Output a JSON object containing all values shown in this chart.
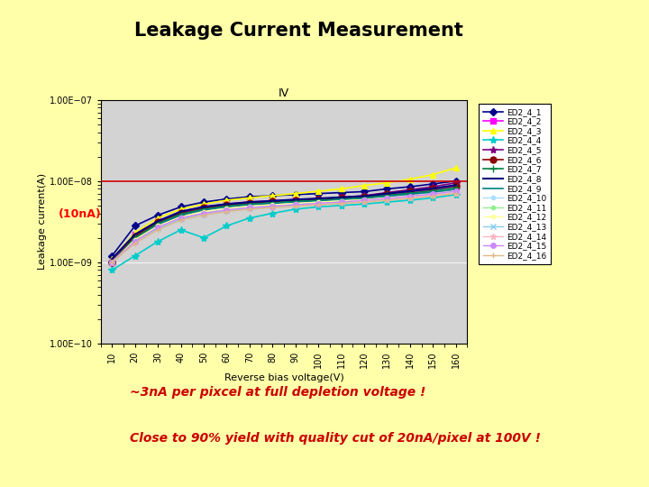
{
  "title": "Leakage Current Measurement",
  "subtitle": "IV",
  "xlabel": "Reverse bias voltage(V)",
  "ylabel": "Leakage current(A)",
  "annotation_10nA": "(10nA)",
  "annotation_3nA": "~3nA per pixcel at full depletion voltage !",
  "annotation_90": "Close to 90% yield with quality cut of 20nA/pixel at 100V !",
  "background_color": "#ffffaa",
  "plot_bg_color": "#d3d3d3",
  "hline_y": 1e-08,
  "hline_color": "#cc0000",
  "x_values": [
    10,
    20,
    30,
    40,
    50,
    60,
    70,
    80,
    90,
    100,
    110,
    120,
    130,
    140,
    150,
    160
  ],
  "series": [
    {
      "name": "ED2_4_1",
      "color": "#00008B",
      "marker": "D",
      "marker_size": 4,
      "linewidth": 1.2,
      "y": [
        1.2e-09,
        2.8e-09,
        3.8e-09,
        4.8e-09,
        5.5e-09,
        6e-09,
        6.4e-09,
        6.6e-09,
        6.8e-09,
        7e-09,
        7.2e-09,
        7.4e-09,
        8e-09,
        8.5e-09,
        9.2e-09,
        1e-08
      ]
    },
    {
      "name": "ED2_4_2",
      "color": "#ff00ff",
      "marker": "s",
      "marker_size": 4,
      "linewidth": 1.2,
      "y": [
        1e-09,
        2.2e-09,
        3.2e-09,
        4.2e-09,
        4.8e-09,
        5.2e-09,
        5.5e-09,
        5.7e-09,
        5.9e-09,
        6e-09,
        6.2e-09,
        6.4e-09,
        6.8e-09,
        7.2e-09,
        7.8e-09,
        8.5e-09
      ]
    },
    {
      "name": "ED2_4_3",
      "color": "#ffff00",
      "marker": "^",
      "marker_size": 5,
      "linewidth": 1.2,
      "y": [
        1.1e-09,
        2.3e-09,
        3.5e-09,
        4.5e-09,
        5.2e-09,
        5.8e-09,
        6.2e-09,
        6.6e-09,
        7e-09,
        7.5e-09,
        8e-09,
        8.8e-09,
        9.5e-09,
        1.05e-08,
        1.2e-08,
        1.45e-08
      ]
    },
    {
      "name": "ED2_4_4",
      "color": "#00cccc",
      "marker": "*",
      "marker_size": 6,
      "linewidth": 1.2,
      "y": [
        8e-10,
        1.2e-09,
        1.8e-09,
        2.5e-09,
        2e-09,
        2.8e-09,
        3.5e-09,
        4e-09,
        4.5e-09,
        4.8e-09,
        5e-09,
        5.2e-09,
        5.5e-09,
        5.8e-09,
        6.2e-09,
        6.8e-09
      ]
    },
    {
      "name": "ED2_4_5",
      "color": "#800080",
      "marker": "*",
      "marker_size": 6,
      "linewidth": 1.2,
      "y": [
        1e-09,
        2e-09,
        3e-09,
        4e-09,
        4.6e-09,
        5e-09,
        5.3e-09,
        5.6e-09,
        5.8e-09,
        6e-09,
        6.3e-09,
        6.6e-09,
        7.2e-09,
        7.8e-09,
        8.5e-09,
        9.5e-09
      ]
    },
    {
      "name": "ED2_4_6",
      "color": "#8B0000",
      "marker": "o",
      "marker_size": 5,
      "linewidth": 1.2,
      "y": [
        1e-09,
        2.1e-09,
        3.1e-09,
        4.1e-09,
        4.7e-09,
        5.1e-09,
        5.4e-09,
        5.6e-09,
        5.8e-09,
        6e-09,
        6.2e-09,
        6.5e-09,
        7e-09,
        7.5e-09,
        8e-09,
        8.8e-09
      ]
    },
    {
      "name": "ED2_4_7",
      "color": "#008040",
      "marker": "+",
      "marker_size": 6,
      "linewidth": 1.2,
      "y": [
        1e-09,
        2e-09,
        3e-09,
        3.9e-09,
        4.5e-09,
        4.9e-09,
        5.2e-09,
        5.4e-09,
        5.6e-09,
        5.8e-09,
        6e-09,
        6.3e-09,
        6.7e-09,
        7.1e-09,
        7.6e-09,
        8.3e-09
      ]
    },
    {
      "name": "ED2_4_8",
      "color": "#000080",
      "marker": "None",
      "marker_size": 0,
      "linewidth": 1.5,
      "y": [
        1.1e-09,
        2.2e-09,
        3.2e-09,
        4.2e-09,
        4.8e-09,
        5.2e-09,
        5.5e-09,
        5.7e-09,
        5.9e-09,
        6.1e-09,
        6.3e-09,
        6.5e-09,
        7e-09,
        7.5e-09,
        8.1e-09,
        8.9e-09
      ]
    },
    {
      "name": "ED2_4_9",
      "color": "#008080",
      "marker": "None",
      "marker_size": 0,
      "linewidth": 1.2,
      "y": [
        1e-09,
        1.9e-09,
        2.9e-09,
        3.8e-09,
        4.4e-09,
        4.8e-09,
        5.1e-09,
        5.3e-09,
        5.5e-09,
        5.7e-09,
        5.9e-09,
        6.1e-09,
        6.5e-09,
        6.9e-09,
        7.3e-09,
        7.9e-09
      ]
    },
    {
      "name": "ED2_4_10",
      "color": "#aaddff",
      "marker": "o",
      "marker_size": 3,
      "linewidth": 1.0,
      "y": [
        1e-09,
        1.8e-09,
        2.7e-09,
        3.5e-09,
        4.1e-09,
        4.5e-09,
        4.8e-09,
        5e-09,
        5.2e-09,
        5.4e-09,
        5.6e-09,
        5.8e-09,
        6.2e-09,
        6.5e-09,
        6.9e-09,
        7.5e-09
      ]
    },
    {
      "name": "ED2_4_11",
      "color": "#90ee90",
      "marker": "o",
      "marker_size": 3,
      "linewidth": 1.0,
      "y": [
        1e-09,
        1.8e-09,
        2.6e-09,
        3.4e-09,
        4e-09,
        4.4e-09,
        4.7e-09,
        4.9e-09,
        5.1e-09,
        5.3e-09,
        5.5e-09,
        5.7e-09,
        6e-09,
        6.3e-09,
        6.7e-09,
        7.3e-09
      ]
    },
    {
      "name": "ED2_4_12",
      "color": "#ffff99",
      "marker": "o",
      "marker_size": 3,
      "linewidth": 1.0,
      "y": [
        1e-09,
        1.9e-09,
        2.8e-09,
        3.6e-09,
        4.2e-09,
        4.6e-09,
        4.9e-09,
        5.1e-09,
        5.3e-09,
        5.5e-09,
        5.7e-09,
        5.9e-09,
        6.2e-09,
        6.5e-09,
        6.9e-09,
        7.5e-09
      ]
    },
    {
      "name": "ED2_4_13",
      "color": "#87ceeb",
      "marker": "x",
      "marker_size": 5,
      "linewidth": 1.0,
      "y": [
        1e-09,
        1.8e-09,
        2.6e-09,
        3.4e-09,
        3.9e-09,
        4.3e-09,
        4.6e-09,
        4.8e-09,
        5e-09,
        5.2e-09,
        5.4e-09,
        5.6e-09,
        6e-09,
        6.3e-09,
        6.7e-09,
        7.2e-09
      ]
    },
    {
      "name": "ED2_4_14",
      "color": "#ffb6c1",
      "marker": "*",
      "marker_size": 5,
      "linewidth": 1.0,
      "y": [
        1e-09,
        1.8e-09,
        2.7e-09,
        3.5e-09,
        4e-09,
        4.4e-09,
        4.7e-09,
        4.9e-09,
        5.1e-09,
        5.3e-09,
        5.5e-09,
        5.7e-09,
        6e-09,
        6.3e-09,
        6.7e-09,
        7.2e-09
      ]
    },
    {
      "name": "ED2_4_15",
      "color": "#cc88ff",
      "marker": "o",
      "marker_size": 4,
      "linewidth": 1.0,
      "y": [
        1e-09,
        1.8e-09,
        2.7e-09,
        3.5e-09,
        4e-09,
        4.4e-09,
        4.7e-09,
        4.9e-09,
        5.1e-09,
        5.3e-09,
        5.5e-09,
        5.8e-09,
        6.1e-09,
        6.5e-09,
        6.9e-09,
        7.5e-09
      ]
    },
    {
      "name": "ED2_4_16",
      "color": "#deb887",
      "marker": "+",
      "marker_size": 5,
      "linewidth": 1.0,
      "y": [
        1e-09,
        1.7e-09,
        2.5e-09,
        3.3e-09,
        3.8e-09,
        4.2e-09,
        4.5e-09,
        4.7e-09,
        4.9e-09,
        5.1e-09,
        5.3e-09,
        5.5e-09,
        5.8e-09,
        6.1e-09,
        6.5e-09,
        7e-09
      ]
    }
  ]
}
